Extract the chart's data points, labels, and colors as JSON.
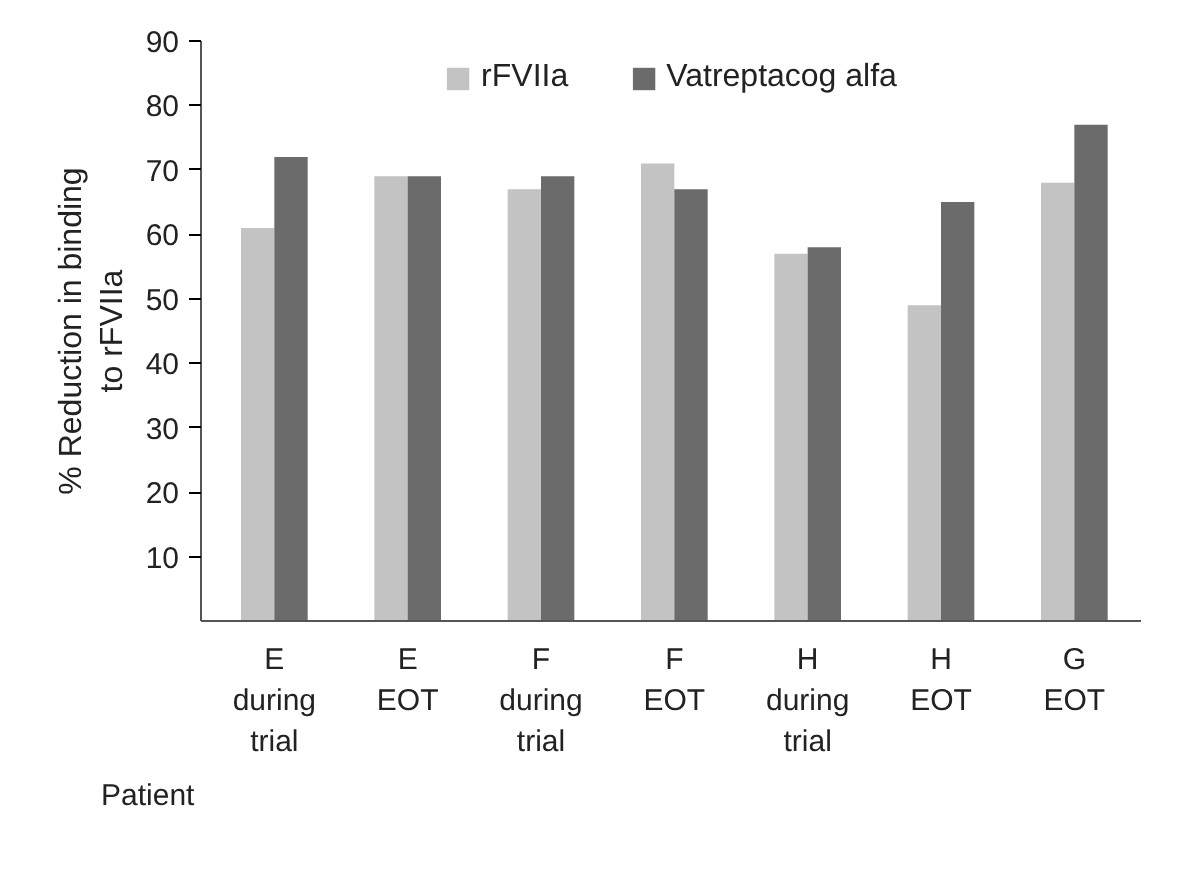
{
  "chart_data": {
    "type": "bar",
    "xlabel": "Patient",
    "ylabel": "% Reduction in binding\nto rFVIIa",
    "categories": [
      "E\nduring\ntrial",
      "E\nEOT",
      "F\nduring\ntrial",
      "F\nEOT",
      "H\nduring\ntrial",
      "H\nEOT",
      "G\nEOT"
    ],
    "series": [
      {
        "name": "rFVIIa",
        "color": "#c3c3c3",
        "values": [
          61,
          69,
          67,
          71,
          57,
          49,
          68
        ]
      },
      {
        "name": "Vatreptacog alfa",
        "color": "#6b6b6b",
        "values": [
          72,
          69,
          69,
          67,
          58,
          65,
          77
        ]
      }
    ],
    "ylim": [
      0,
      90
    ],
    "yticks": [
      10,
      20,
      30,
      40,
      50,
      60,
      70,
      80,
      90
    ],
    "grid": false,
    "legend": "top"
  }
}
